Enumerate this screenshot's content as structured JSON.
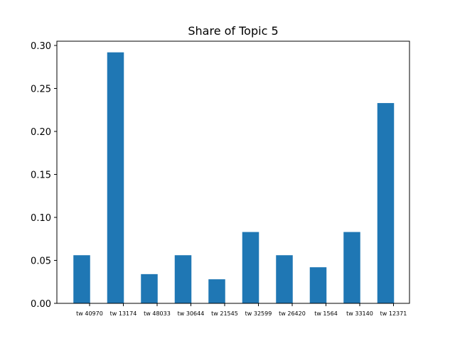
{
  "chart_data": {
    "type": "bar",
    "title": "Share of Topic 5",
    "xlabel": "",
    "ylabel": "",
    "categories": [
      "tw 40970",
      "tw 13174",
      "tw 48033",
      "tw 30644",
      "tw 21545",
      "tw 32599",
      "tw 26420",
      "tw 1564",
      "tw 33140",
      "tw 12371"
    ],
    "values": [
      0.056,
      0.292,
      0.034,
      0.056,
      0.028,
      0.083,
      0.056,
      0.042,
      0.083,
      0.233
    ],
    "ylim": [
      0,
      0.3
    ],
    "yticks": [
      "0.00",
      "0.05",
      "0.10",
      "0.15",
      "0.20",
      "0.25",
      "0.30"
    ],
    "grid": false,
    "bar_color": "#1f77b4"
  }
}
